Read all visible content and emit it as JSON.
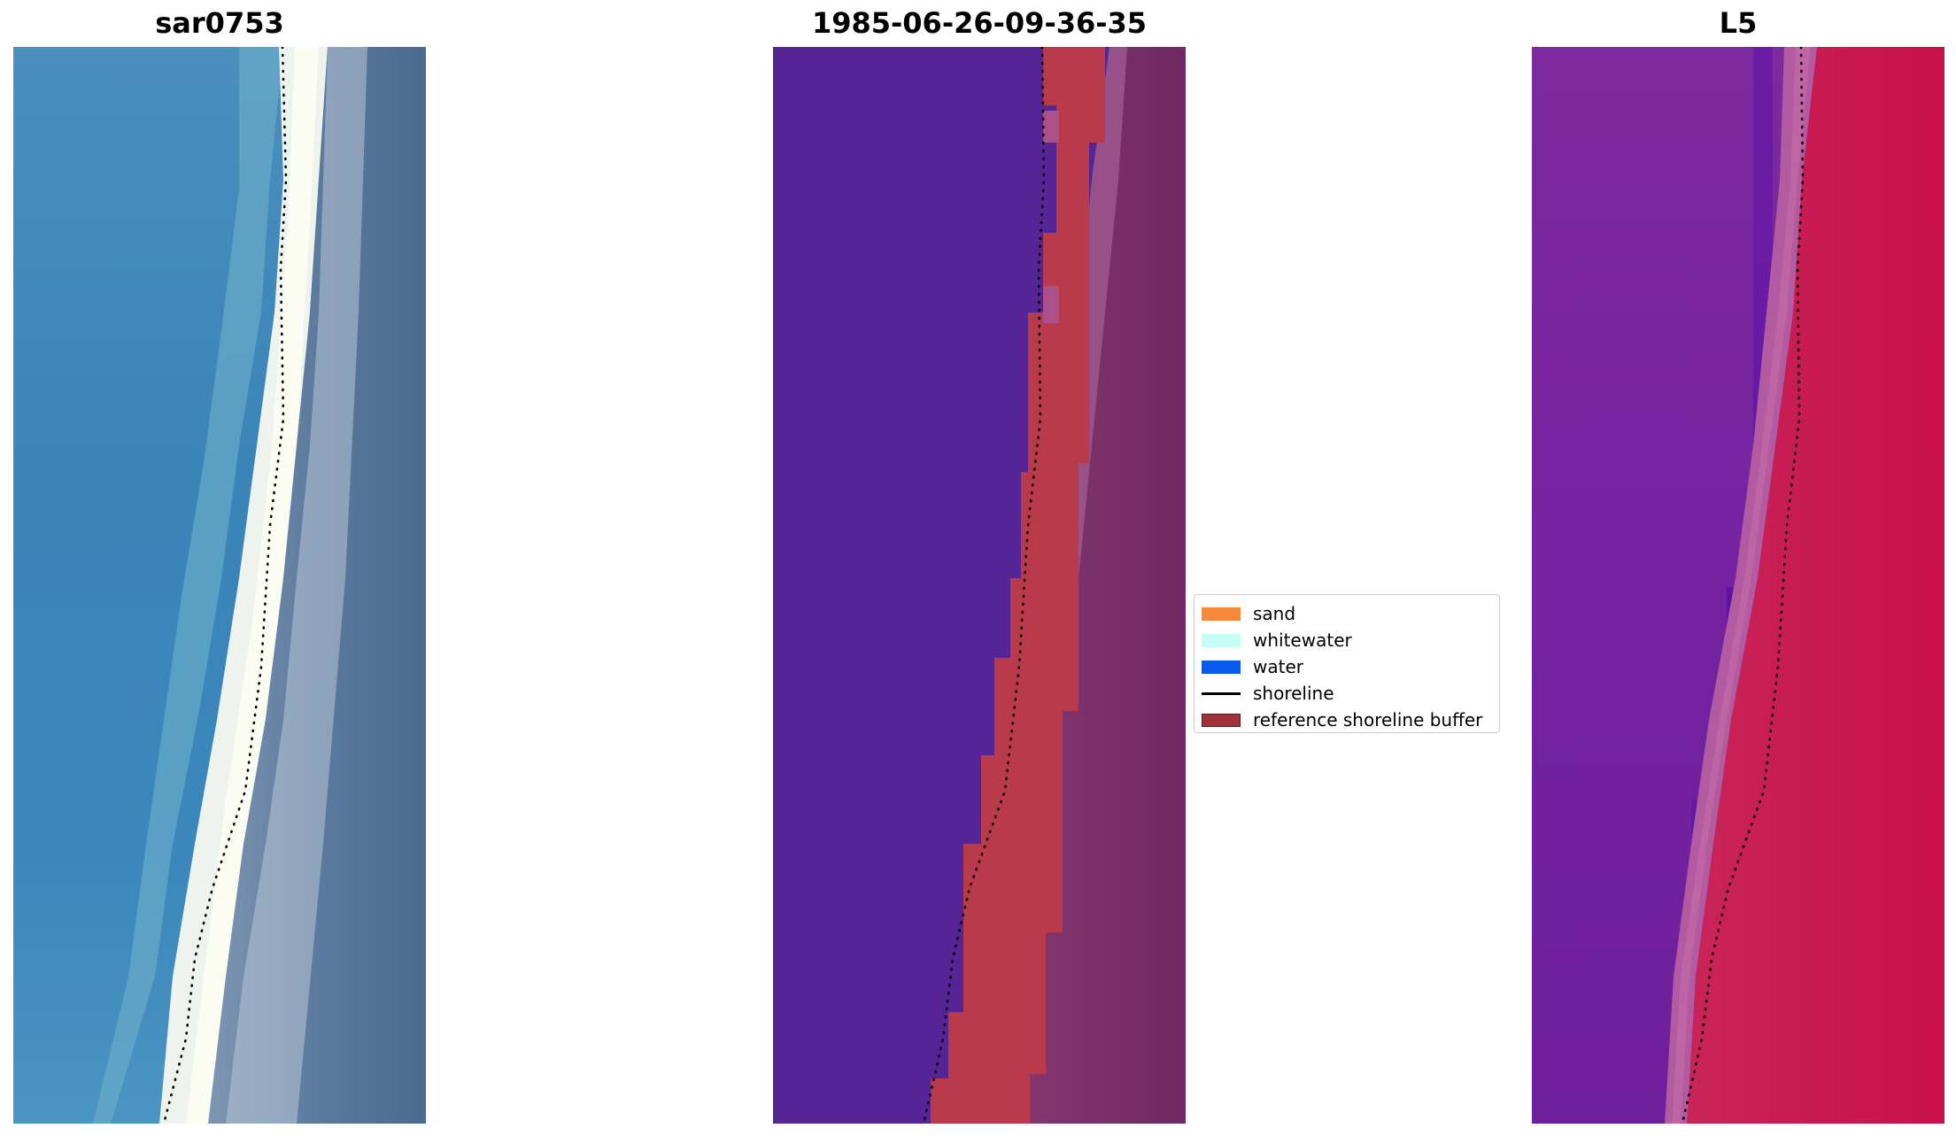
{
  "panels": [
    {
      "title": "sar0753",
      "image": "RGB satellite image of a beach: blue-green sea on the left, a bright white surf and sand band, grey-blue land on the right"
    },
    {
      "title": "1985-06-26-09-36-35",
      "image": "classified image: water class in purple on the left, reference shoreline buffer in red along the shore, land in muted magenta on the right"
    },
    {
      "title": "L5",
      "image": "false-colour index image: purple on the left, crimson on the right, a pale pink band along the shoreline"
    }
  ],
  "legend": {
    "items": [
      {
        "label": "sand",
        "color": "#F8893A",
        "kind": "patch"
      },
      {
        "label": "whitewater",
        "color": "#C6FDF5",
        "kind": "patch"
      },
      {
        "label": "water",
        "color": "#0859EE",
        "kind": "patch"
      },
      {
        "label": "shoreline",
        "color": "#000000",
        "kind": "line"
      },
      {
        "label": "reference shoreline buffer",
        "color": "#9E3139",
        "kind": "patch"
      }
    ]
  }
}
